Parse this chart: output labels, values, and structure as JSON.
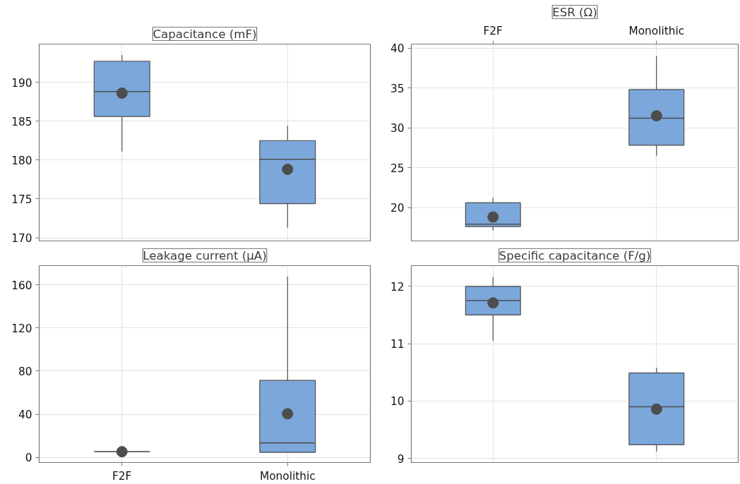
{
  "chart_data": [
    {
      "type": "box",
      "title": "Capacitance (mF)",
      "categories": [
        null,
        null
      ],
      "color": "#7ba7db",
      "ylim": [
        169.6,
        194.9
      ],
      "yticks": [
        170,
        175,
        180,
        185,
        190
      ],
      "grid": true,
      "tick_labels": "y",
      "boxes": [
        {
          "low": 181.1,
          "q1": 185.6,
          "median": 188.8,
          "q3": 192.7,
          "high": 193.5,
          "mean": 188.6
        },
        {
          "low": 171.3,
          "q1": 174.4,
          "median": 180.1,
          "q3": 182.5,
          "high": 184.4,
          "mean": 178.8
        }
      ]
    },
    {
      "type": "box",
      "title": "ESR (Ω)",
      "categories": [
        "F2F",
        "Monolithic"
      ],
      "color": "#7ba7db",
      "ylim": [
        15.8,
        40.5
      ],
      "yticks": [
        20,
        25,
        30,
        35,
        40
      ],
      "grid": true,
      "boxes": [
        {
          "low": 17.1,
          "q1": 17.6,
          "median": 17.9,
          "q3": 20.6,
          "high": 21.2,
          "mean": 18.8
        },
        {
          "low": 26.5,
          "q1": 27.8,
          "median": 31.2,
          "q3": 34.8,
          "high": 39.0,
          "mean": 31.5
        }
      ]
    },
    {
      "type": "box",
      "title": "Leakage current (µA)",
      "categories": [
        "F2F",
        "Monolithic"
      ],
      "color": "#7ba7db",
      "ylim": [
        -4.8,
        177.8
      ],
      "yticks": [
        0,
        40,
        80,
        120,
        160
      ],
      "grid": true,
      "boxes": [
        {
          "low": 5.2,
          "q1": 5.2,
          "median": 5.2,
          "q3": 5.2,
          "high": 5.2,
          "mean": 5.2
        },
        {
          "low": 4.6,
          "q1": 4.6,
          "median": 13.3,
          "q3": 71.3,
          "high": 167.6,
          "mean": 40.4
        }
      ]
    },
    {
      "type": "box",
      "title": "Specific capacitance (F/g)",
      "categories": [
        null,
        null
      ],
      "color": "#7ba7db",
      "ylim": [
        8.93,
        12.36
      ],
      "yticks": [
        9,
        10,
        11,
        12
      ],
      "grid": true,
      "tick_labels": "y",
      "boxes": [
        {
          "low": 11.05,
          "q1": 11.5,
          "median": 11.75,
          "q3": 12.0,
          "high": 12.16,
          "mean": 11.71
        },
        {
          "low": 9.12,
          "q1": 9.24,
          "median": 9.9,
          "q3": 10.49,
          "high": 10.58,
          "mean": 9.86
        }
      ]
    }
  ]
}
